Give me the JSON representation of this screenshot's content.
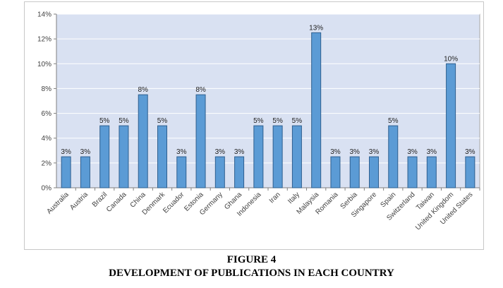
{
  "caption": {
    "figure_number": "FIGURE 4",
    "title": "DEVELOPMENT OF PUBLICATIONS IN EACH COUNTRY"
  },
  "colors": {
    "plot_background": "#d9e1f2",
    "bar_fill": "#5b9bd5",
    "bar_stroke": "#2e5f8f",
    "grid": "#ffffff"
  },
  "chart_data": {
    "type": "bar",
    "title": "",
    "xlabel": "",
    "ylabel": "",
    "ylim": [
      0,
      14
    ],
    "y_ticks": [
      "0%",
      "2%",
      "4%",
      "6%",
      "8%",
      "10%",
      "12%",
      "14%"
    ],
    "y_tick_values": [
      0,
      2,
      4,
      6,
      8,
      10,
      12,
      14
    ],
    "grid": true,
    "categories": [
      "Australia",
      "Austria",
      "Brazil",
      "Canada",
      "China",
      "Denmark",
      "Ecuador",
      "Estonia",
      "Germany",
      "Ghana",
      "Indonesia",
      "Iran",
      "Italy",
      "Malaysia",
      "Romania",
      "Serbia",
      "Singapore",
      "Spain",
      "Switzerland",
      "Taiwan",
      "United Kingdom",
      "United States"
    ],
    "values": [
      2.5,
      2.5,
      5,
      5,
      7.5,
      5,
      2.5,
      7.5,
      2.5,
      2.5,
      5,
      5,
      5,
      12.5,
      2.5,
      2.5,
      2.5,
      5,
      2.5,
      2.5,
      10,
      2.5
    ],
    "data_labels": [
      "3%",
      "3%",
      "5%",
      "5%",
      "8%",
      "5%",
      "3%",
      "8%",
      "3%",
      "3%",
      "5%",
      "5%",
      "5%",
      "13%",
      "3%",
      "3%",
      "3%",
      "5%",
      "3%",
      "3%",
      "10%",
      "3%"
    ]
  }
}
